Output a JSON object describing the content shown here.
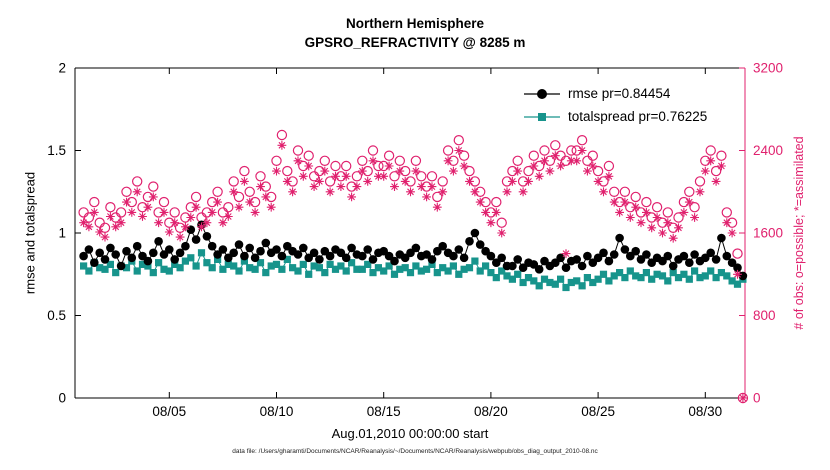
{
  "title": {
    "line1": "Northern Hemisphere",
    "line2": "GPSRO_REFRACTIVITY @ 8285 m"
  },
  "axes": {
    "left_label": "rmse and totalspread",
    "right_label": "# of obs: o=possible; *=assimilated",
    "x_label": "Aug.01,2010 00:00:00 start",
    "left_ticks": [
      0,
      0.5,
      1,
      1.5,
      2
    ],
    "left_tick_labels": [
      "0",
      "0.5",
      "1",
      "1.5",
      "2"
    ],
    "left_range": [
      0,
      2
    ],
    "right_ticks": [
      0,
      800,
      1600,
      2400,
      3200
    ],
    "right_tick_labels": [
      "0",
      "800",
      "1600",
      "2400",
      "3200"
    ],
    "right_range": [
      0,
      3200
    ],
    "x_ticks": [
      5,
      10,
      15,
      20,
      25,
      30
    ],
    "x_tick_labels": [
      "08/05",
      "08/10",
      "08/15",
      "08/20",
      "08/25",
      "08/30"
    ],
    "x_range": [
      0.6,
      31.85
    ]
  },
  "colors": {
    "rmse": "#000000",
    "spread": "#17948c",
    "obs": "#e0216e"
  },
  "legend": {
    "items": [
      {
        "label": "rmse pr=0.84454",
        "series": "rmse",
        "marker": "filled-circle"
      },
      {
        "label": "totalspread pr=0.76225",
        "series": "totalspread",
        "marker": "filled-square"
      }
    ]
  },
  "footer": "data file: /Users/gharamti/Documents/NCAR/Reanalysis/~/Documents/NCAR/Reanalysis/webpub/obs_diag_output_2010-08.nc",
  "chart_data": {
    "type": "line",
    "title": "Northern Hemisphere GPSRO_REFRACTIVITY @ 8285 m",
    "x_unit": "days since Aug.01,2010 00:00:00",
    "x_start": 1.0,
    "x_step": 0.25,
    "n_points": 124,
    "series": [
      {
        "name": "rmse",
        "axis": "left",
        "marker": "filled-circle",
        "line": true,
        "values": [
          0.86,
          0.9,
          0.82,
          0.88,
          0.84,
          0.91,
          0.87,
          0.8,
          0.89,
          0.85,
          0.92,
          0.86,
          0.83,
          0.88,
          0.95,
          0.87,
          0.9,
          0.84,
          0.88,
          0.92,
          1.02,
          0.96,
          1.05,
          0.98,
          0.92,
          0.87,
          0.9,
          0.85,
          0.88,
          0.93,
          0.86,
          0.91,
          0.85,
          0.89,
          0.94,
          0.88,
          0.9,
          0.86,
          0.92,
          0.89,
          0.87,
          0.91,
          0.85,
          0.88,
          0.84,
          0.89,
          0.86,
          0.9,
          0.88,
          0.85,
          0.91,
          0.87,
          0.86,
          0.9,
          0.84,
          0.88,
          0.89,
          0.86,
          0.83,
          0.87,
          0.85,
          0.88,
          0.91,
          0.86,
          0.87,
          0.84,
          0.89,
          0.92,
          0.88,
          0.86,
          0.9,
          0.85,
          0.95,
          1.0,
          0.93,
          0.89,
          0.86,
          0.82,
          0.85,
          0.8,
          0.8,
          0.84,
          0.79,
          0.82,
          0.81,
          0.78,
          0.83,
          0.8,
          0.82,
          0.85,
          0.79,
          0.83,
          0.84,
          0.8,
          0.86,
          0.82,
          0.85,
          0.88,
          0.83,
          0.87,
          0.97,
          0.9,
          0.86,
          0.89,
          0.84,
          0.87,
          0.82,
          0.85,
          0.83,
          0.86,
          0.8,
          0.84,
          0.86,
          0.82,
          0.87,
          0.83,
          0.85,
          0.88,
          0.84,
          0.97,
          0.86,
          0.82,
          0.79,
          0.74
        ]
      },
      {
        "name": "totalspread",
        "axis": "left",
        "marker": "filled-square",
        "line": true,
        "values": [
          0.8,
          0.77,
          0.82,
          0.79,
          0.78,
          0.81,
          0.76,
          0.8,
          0.79,
          0.83,
          0.77,
          0.81,
          0.8,
          0.76,
          0.82,
          0.78,
          0.77,
          0.81,
          0.79,
          0.83,
          0.85,
          0.8,
          0.88,
          0.82,
          0.79,
          0.84,
          0.78,
          0.81,
          0.8,
          0.77,
          0.83,
          0.79,
          0.78,
          0.82,
          0.76,
          0.8,
          0.81,
          0.78,
          0.84,
          0.79,
          0.77,
          0.81,
          0.75,
          0.8,
          0.79,
          0.76,
          0.81,
          0.78,
          0.8,
          0.77,
          0.82,
          0.78,
          0.78,
          0.81,
          0.76,
          0.79,
          0.77,
          0.8,
          0.75,
          0.78,
          0.79,
          0.76,
          0.8,
          0.77,
          0.78,
          0.81,
          0.76,
          0.79,
          0.77,
          0.8,
          0.75,
          0.78,
          0.79,
          0.83,
          0.77,
          0.8,
          0.76,
          0.73,
          0.77,
          0.74,
          0.72,
          0.75,
          0.7,
          0.73,
          0.71,
          0.68,
          0.72,
          0.7,
          0.69,
          0.72,
          0.67,
          0.7,
          0.71,
          0.68,
          0.73,
          0.7,
          0.72,
          0.75,
          0.71,
          0.74,
          0.76,
          0.73,
          0.77,
          0.74,
          0.73,
          0.76,
          0.72,
          0.75,
          0.74,
          0.71,
          0.76,
          0.73,
          0.75,
          0.72,
          0.77,
          0.73,
          0.74,
          0.77,
          0.73,
          0.76,
          0.74,
          0.71,
          0.69,
          0.72
        ]
      },
      {
        "name": "possible",
        "axis": "right",
        "marker": "open-circle",
        "line": false,
        "values": [
          1800,
          1750,
          1900,
          1700,
          1650,
          1850,
          1750,
          1800,
          2000,
          1900,
          2100,
          1850,
          1950,
          2050,
          1800,
          1900,
          1700,
          1800,
          1650,
          1750,
          1850,
          1950,
          1750,
          1800,
          1900,
          2000,
          1800,
          1850,
          2100,
          1950,
          2200,
          2000,
          1900,
          2150,
          2050,
          1950,
          2300,
          2550,
          2200,
          2100,
          2400,
          2250,
          2350,
          2150,
          2200,
          2300,
          2100,
          2250,
          2150,
          2250,
          2050,
          2150,
          2300,
          2200,
          2400,
          2250,
          2250,
          2350,
          2150,
          2300,
          2200,
          2100,
          2300,
          2150,
          2050,
          2150,
          1950,
          2100,
          2400,
          2300,
          2500,
          2350,
          2200,
          2100,
          2000,
          1900,
          1800,
          1900,
          1700,
          2100,
          2200,
          2300,
          2100,
          2200,
          2350,
          2250,
          2400,
          2300,
          2450,
          2350,
          2300,
          2400,
          2400,
          2500,
          2300,
          2350,
          2200,
          2100,
          2250,
          2000,
          1900,
          2000,
          1850,
          1950,
          1800,
          1900,
          1750,
          1850,
          1700,
          1800,
          1650,
          1750,
          1900,
          2000,
          1850,
          2100,
          2300,
          2400,
          2200,
          2350,
          1800,
          1700,
          1400,
          0
        ]
      },
      {
        "name": "assimilated",
        "axis": "right",
        "marker": "asterisk",
        "line": false,
        "values": [
          1700,
          1660,
          1800,
          1610,
          1560,
          1760,
          1660,
          1700,
          1900,
          1800,
          2000,
          1760,
          1850,
          1950,
          1700,
          1800,
          1610,
          1700,
          1560,
          1660,
          1750,
          1850,
          1660,
          1700,
          1800,
          1900,
          1700,
          1760,
          2000,
          1850,
          2100,
          1900,
          1800,
          2050,
          1950,
          1850,
          2200,
          2450,
          2100,
          2000,
          2300,
          2150,
          2250,
          2050,
          2100,
          2200,
          2000,
          2150,
          2050,
          2150,
          1950,
          2050,
          2200,
          2100,
          2300,
          2150,
          2150,
          2250,
          2050,
          2200,
          2100,
          2000,
          2200,
          2050,
          1950,
          2050,
          1850,
          2000,
          2300,
          2200,
          2400,
          2250,
          2100,
          2000,
          1900,
          1800,
          1700,
          1800,
          1600,
          2000,
          2100,
          2200,
          2000,
          2100,
          2250,
          2150,
          2300,
          2200,
          2350,
          2250,
          1400,
          2300,
          2300,
          2400,
          2200,
          2250,
          2100,
          2000,
          2150,
          1900,
          1800,
          1900,
          1750,
          1850,
          1700,
          1800,
          1650,
          1750,
          1600,
          1700,
          1550,
          1650,
          1800,
          1900,
          1750,
          2000,
          2200,
          2300,
          2100,
          2250,
          1700,
          1600,
          1200,
          0
        ]
      }
    ]
  }
}
